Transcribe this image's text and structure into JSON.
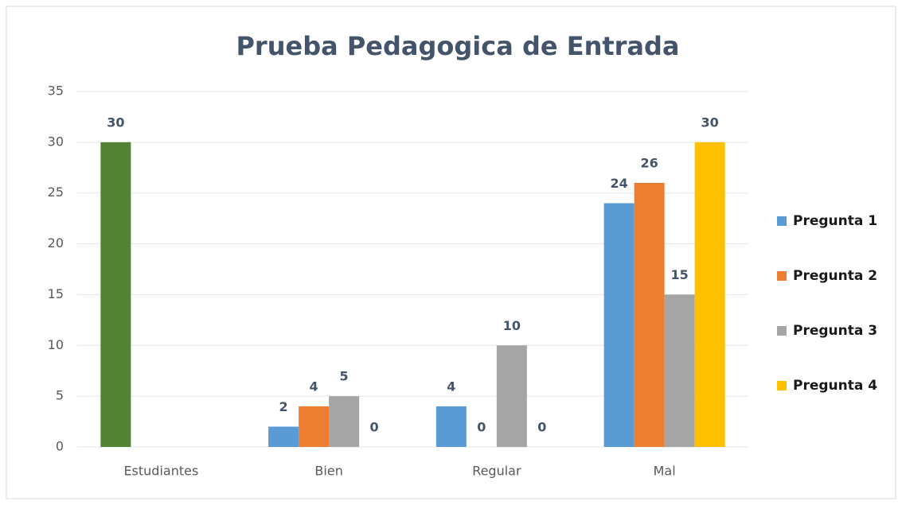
{
  "chart_data": {
    "type": "bar",
    "title": "Prueba Pedagogica de Entrada",
    "categories": [
      "Estudiantes",
      "Bien",
      "Regular",
      "Mal"
    ],
    "series": [
      {
        "name": "Pregunta 1",
        "color": "#5b9bd5",
        "point_colors": [
          "#548235",
          "#5b9bd5",
          "#5b9bd5",
          "#5b9bd5"
        ],
        "values": [
          30,
          2,
          4,
          24
        ]
      },
      {
        "name": "Pregunta 2",
        "color": "#ed7d31",
        "values": [
          null,
          4,
          0,
          26
        ]
      },
      {
        "name": "Pregunta 3",
        "color": "#a5a5a5",
        "values": [
          null,
          5,
          10,
          15
        ]
      },
      {
        "name": "Pregunta 4",
        "color": "#ffc000",
        "values": [
          null,
          0,
          0,
          30
        ]
      }
    ],
    "ylim": [
      0,
      35
    ],
    "yticks": [
      0,
      5,
      10,
      15,
      20,
      25,
      30,
      35
    ],
    "grid": true,
    "legend": "right",
    "data_labels": true
  }
}
